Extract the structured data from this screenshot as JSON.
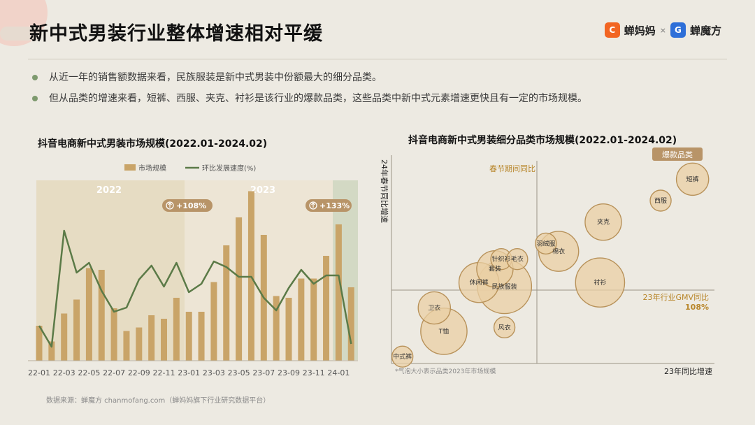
{
  "header": {
    "title": "新中式男装行业整体增速相对平缓",
    "brand1": "蝉妈妈",
    "brand_sep": "×",
    "brand2": "蝉魔方",
    "brand1_color": "#f26522",
    "brand2_color": "#2e6fd8"
  },
  "bullets": [
    "从近一年的销售额数据来看，民族服装是新中式男装中份额最大的细分品类。",
    "但从品类的增速来看，短裤、西服、夹克、衬衫是该行业的爆款品类，这些品类中新中式元素增速更快且有一定的市场规模。"
  ],
  "source": "数据来源：蝉魔方 chanmofang.com（蝉妈妈旗下行业研究数据平台）",
  "colors": {
    "bar": "#c9a468",
    "line": "#5b7a47",
    "bubble_fill": "#e9cfa4",
    "bubble_stroke": "#b8925a",
    "accent_gold": "#b8862a",
    "badge_fill": "#b89468"
  },
  "chart_data": [
    {
      "type": "bar",
      "title": "抖音电商新中式男装市场规模(2022.01-2024.02)",
      "legend": [
        "市场规模",
        "环比发展速度(%)"
      ],
      "year_labels": [
        "2022",
        "2023"
      ],
      "annotations": [
        "+108%",
        "+133%"
      ],
      "x_tick_labels": [
        "22-01",
        "22-03",
        "22-05",
        "22-07",
        "22-09",
        "22-11",
        "23-01",
        "23-03",
        "23-05",
        "23-07",
        "23-09",
        "23-11",
        "24-01"
      ],
      "categories": [
        "22-01",
        "22-02",
        "22-03",
        "22-04",
        "22-05",
        "22-06",
        "22-07",
        "22-08",
        "22-09",
        "22-10",
        "22-11",
        "22-12",
        "23-01",
        "23-02",
        "23-03",
        "23-04",
        "23-05",
        "23-06",
        "23-07",
        "23-08",
        "23-09",
        "23-10",
        "23-11",
        "23-12",
        "24-01",
        "24-02"
      ],
      "series": [
        {
          "name": "市场规模",
          "type": "bar",
          "values": [
            20,
            11,
            27,
            35,
            53,
            52,
            30,
            17,
            19,
            26,
            24,
            36,
            28,
            28,
            45,
            66,
            82,
            97,
            72,
            37,
            36,
            47,
            47,
            60,
            78,
            42
          ]
        },
        {
          "name": "环比发展速度(%)",
          "type": "line",
          "values": [
            0,
            -15,
            68,
            38,
            45,
            25,
            10,
            13,
            33,
            43,
            28,
            45,
            24,
            30,
            46,
            42,
            35,
            35,
            20,
            11,
            27,
            40,
            30,
            36,
            36,
            -13
          ]
        }
      ],
      "ylim_bar": [
        0,
        100
      ],
      "ylim_line": [
        -25,
        100
      ]
    },
    {
      "type": "scatter",
      "title": "抖音电商新中式男装细分品类市场规模(2022.01-2024.02)",
      "xlabel": "23年同比增速",
      "ylabel": "24年春节同比增速",
      "hline_label": "23年行业GMV同比",
      "hline_value_label": "108%",
      "vline_label": "春节期间同比",
      "badge": "爆款品类",
      "note": "*气泡大小表示品类2023年市场规模",
      "points": [
        {
          "label": "短裤",
          "x": 94,
          "y": 92,
          "size": 3
        },
        {
          "label": "西服",
          "x": 84,
          "y": 81,
          "size": 1
        },
        {
          "label": "夹克",
          "x": 66,
          "y": 70,
          "size": 4
        },
        {
          "label": "羽绒服",
          "x": 48,
          "y": 59,
          "size": 1
        },
        {
          "label": "棉衣",
          "x": 52,
          "y": 55,
          "size": 5
        },
        {
          "label": "针织衫",
          "x": 34,
          "y": 51,
          "size": 1
        },
        {
          "label": "毛衣",
          "x": 39,
          "y": 51,
          "size": 1
        },
        {
          "label": "套装",
          "x": 32,
          "y": 46,
          "size": 4
        },
        {
          "label": "休闲裤",
          "x": 27,
          "y": 39,
          "size": 5
        },
        {
          "label": "民族服装",
          "x": 35,
          "y": 37,
          "size": 10
        },
        {
          "label": "衬衫",
          "x": 65,
          "y": 39,
          "size": 8
        },
        {
          "label": "卫衣",
          "x": 13,
          "y": 26,
          "size": 3
        },
        {
          "label": "T恤",
          "x": 16,
          "y": 14,
          "size": 7
        },
        {
          "label": "风衣",
          "x": 35,
          "y": 16,
          "size": 1
        },
        {
          "label": "中式裤",
          "x": 3,
          "y": 1,
          "size": 1
        }
      ]
    }
  ]
}
